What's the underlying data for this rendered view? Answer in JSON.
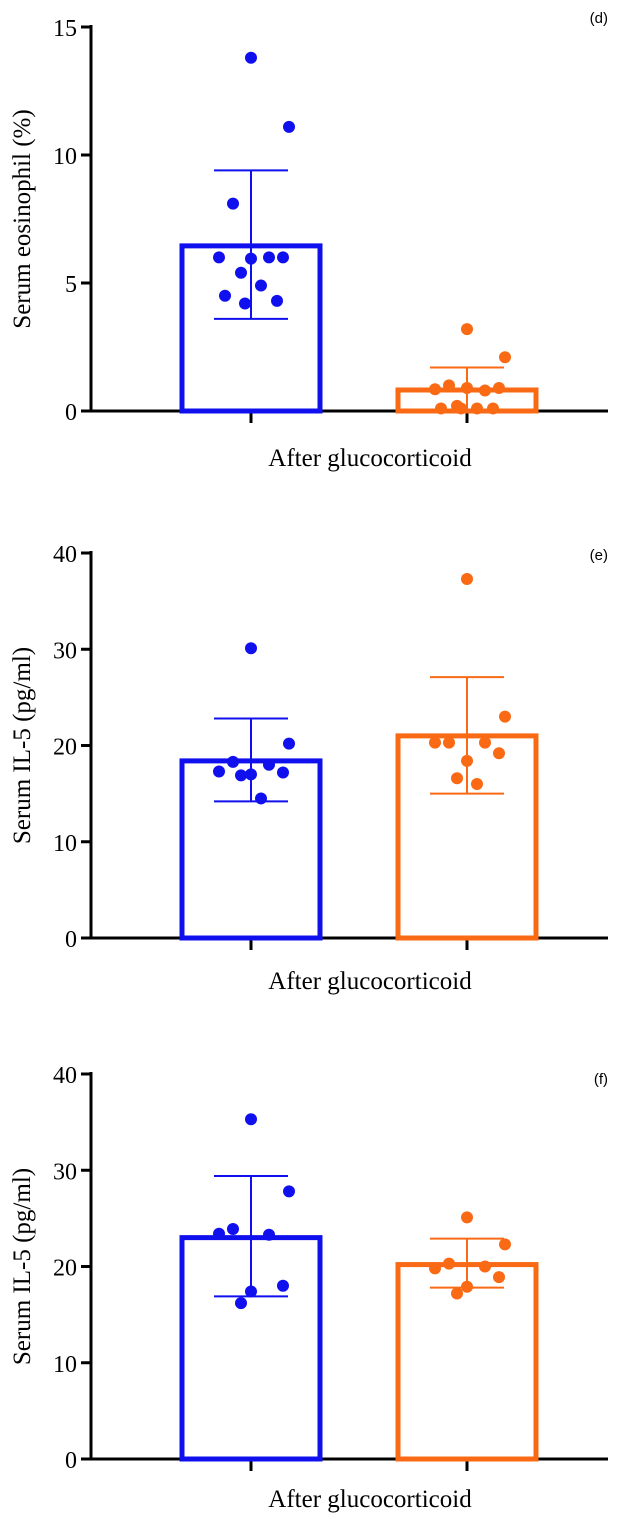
{
  "colors": {
    "group1": "#1010ee",
    "group2": "#fa6a14"
  },
  "chart_data": [
    {
      "type": "bar",
      "panel_label": "(d)",
      "ylabel": "Serum eosinophil (%)",
      "xlabel": "After glucocorticoid",
      "ylim": [
        0,
        15
      ],
      "yticks": [
        0,
        5,
        10,
        15
      ],
      "series": [
        {
          "color": "#1010ee",
          "mean": 6.45,
          "sd_upper": 9.4,
          "sd_lower": 3.6,
          "points": [
            13.8,
            11.1,
            8.1,
            6.0,
            6.0,
            6.0,
            5.95,
            5.4,
            4.9,
            4.5,
            4.3,
            4.2
          ]
        },
        {
          "color": "#fa6a14",
          "mean": 0.82,
          "sd_upper": 1.7,
          "sd_lower": 0.05,
          "points": [
            3.2,
            2.1,
            1.0,
            0.8,
            0.85,
            0.9,
            0.9,
            0.2,
            0.1,
            0.1,
            0.1,
            0.1
          ]
        }
      ]
    },
    {
      "type": "bar",
      "panel_label": "(e)",
      "ylabel": "Serum IL-5 (pg/ml)",
      "xlabel": "After glucocorticoid",
      "ylim": [
        0,
        40
      ],
      "yticks": [
        0,
        10,
        20,
        30,
        40
      ],
      "series": [
        {
          "color": "#1010ee",
          "mean": 18.4,
          "sd_upper": 22.8,
          "sd_lower": 14.2,
          "points": [
            30.1,
            20.2,
            18.3,
            18.0,
            17.3,
            17.2,
            17.0,
            16.9,
            14.5
          ]
        },
        {
          "color": "#fa6a14",
          "mean": 21.0,
          "sd_upper": 27.1,
          "sd_lower": 15.0,
          "points": [
            37.3,
            23.0,
            20.3,
            20.3,
            20.3,
            19.2,
            18.4,
            16.6,
            16.0
          ]
        }
      ]
    },
    {
      "type": "bar",
      "panel_label": "(f)",
      "ylabel": "Serum IL-5 (pg/ml)",
      "xlabel": "After glucocorticoid",
      "ylim": [
        0,
        40
      ],
      "yticks": [
        0,
        10,
        20,
        30,
        40
      ],
      "series": [
        {
          "color": "#1010ee",
          "mean": 23.0,
          "sd_upper": 29.4,
          "sd_lower": 16.9,
          "points": [
            35.3,
            27.8,
            23.9,
            23.3,
            23.4,
            18.0,
            17.4,
            16.2
          ]
        },
        {
          "color": "#fa6a14",
          "mean": 20.2,
          "sd_upper": 22.9,
          "sd_lower": 17.8,
          "points": [
            25.1,
            22.3,
            20.3,
            20.0,
            19.8,
            18.9,
            17.9,
            17.2
          ]
        }
      ]
    }
  ]
}
